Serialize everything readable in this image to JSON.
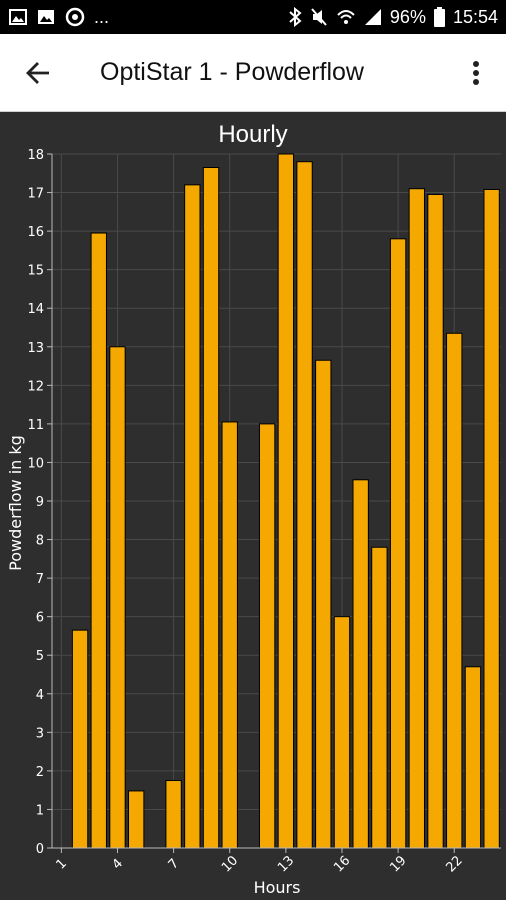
{
  "status_bar": {
    "battery": "96%",
    "time": "15:54",
    "more": "...",
    "icons": [
      "image-icon",
      "gallery-icon",
      "sync-icon",
      "bluetooth-icon",
      "mute-icon",
      "wifi-icon",
      "signal-icon",
      "battery-icon"
    ]
  },
  "app_bar": {
    "title": "OptiStar 1 - Powderflow",
    "back_icon": "arrow-back-icon",
    "menu_icon": "more-vert-icon"
  },
  "colors": {
    "bar": "#f5a800",
    "bar_border": "#000000",
    "background": "#2e2e2e",
    "grid": "#4a4a4a",
    "text": "#ffffff"
  },
  "chart_data": {
    "type": "bar",
    "title": "Hourly",
    "xlabel": "Hours",
    "ylabel": "Powderflow in kg",
    "ylim": [
      0,
      18
    ],
    "xlim": [
      0.5,
      24.5
    ],
    "x_ticks": [
      1,
      4,
      7,
      10,
      13,
      16,
      19,
      22
    ],
    "y_ticks": [
      0,
      1,
      2,
      3,
      4,
      5,
      6,
      7,
      8,
      9,
      10,
      11,
      12,
      13,
      14,
      15,
      16,
      17,
      18
    ],
    "grid": true,
    "x": [
      1,
      2,
      3,
      4,
      5,
      6,
      7,
      8,
      9,
      10,
      11,
      12,
      13,
      14,
      15,
      16,
      17,
      18,
      19,
      20,
      21,
      22,
      23,
      24
    ],
    "values": [
      0,
      5.65,
      15.95,
      13.0,
      1.48,
      0,
      1.75,
      17.2,
      17.65,
      11.05,
      0,
      11.0,
      18.0,
      17.8,
      12.65,
      6.0,
      9.55,
      7.8,
      15.8,
      17.1,
      16.95,
      13.35,
      4.7,
      17.08
    ]
  }
}
